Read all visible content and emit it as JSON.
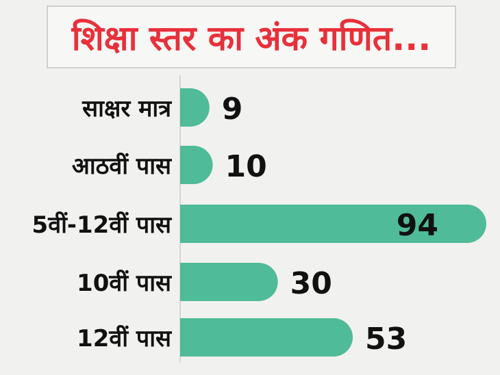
{
  "title": "शिक्षा स्तर का अंक गणित...",
  "colors": {
    "bar": "#4fbb98",
    "title": "#e8303a",
    "text": "#111111"
  },
  "chart_data": {
    "type": "bar",
    "orientation": "horizontal",
    "title": "शिक्षा स्तर का अंक गणित...",
    "categories": [
      "साक्षर मात्र",
      "आठवीं पास",
      "5वीं-12वीं पास",
      "10वीं पास",
      "12वीं पास"
    ],
    "values": [
      9,
      10,
      94,
      30,
      53
    ],
    "xlim": [
      0,
      94
    ],
    "grid": false,
    "legend": "none"
  }
}
